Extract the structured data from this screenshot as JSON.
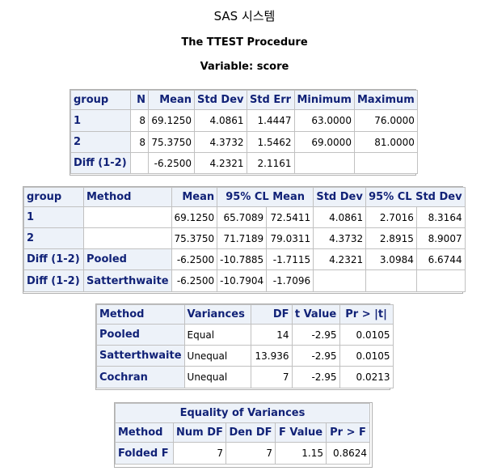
{
  "header": {
    "title": "SAS 시스템",
    "procedure": "The TTEST Procedure",
    "variable": "Variable: score"
  },
  "stats_table": {
    "headers": [
      "group",
      "N",
      "Mean",
      "Std Dev",
      "Std Err",
      "Minimum",
      "Maximum"
    ],
    "rows": [
      [
        "1",
        "8",
        "69.1250",
        "4.0861",
        "1.4447",
        "63.0000",
        "76.0000"
      ],
      [
        "2",
        "8",
        "75.3750",
        "4.3732",
        "1.5462",
        "69.0000",
        "81.0000"
      ],
      [
        "Diff (1-2)",
        "",
        "-6.2500",
        "4.2321",
        "2.1161",
        "",
        ""
      ]
    ]
  },
  "cl_table": {
    "headers": [
      "group",
      "Method",
      "Mean",
      "95% CL Mean",
      "Std Dev",
      "95% CL Std Dev"
    ],
    "rows": [
      [
        "1",
        "",
        "69.1250",
        "65.7089",
        "72.5411",
        "4.0861",
        "2.7016",
        "8.3164"
      ],
      [
        "2",
        "",
        "75.3750",
        "71.7189",
        "79.0311",
        "4.3732",
        "2.8915",
        "8.9007"
      ],
      [
        "Diff (1-2)",
        "Pooled",
        "-6.2500",
        "-10.7885",
        "-1.7115",
        "4.2321",
        "3.0984",
        "6.6744"
      ],
      [
        "Diff (1-2)",
        "Satterthwaite",
        "-6.2500",
        "-10.7904",
        "-1.7096",
        "",
        "",
        ""
      ]
    ]
  },
  "ttest_table": {
    "headers": [
      "Method",
      "Variances",
      "DF",
      "t Value",
      "Pr > |t|"
    ],
    "rows": [
      [
        "Pooled",
        "Equal",
        "14",
        "-2.95",
        "0.0105"
      ],
      [
        "Satterthwaite",
        "Unequal",
        "13.936",
        "-2.95",
        "0.0105"
      ],
      [
        "Cochran",
        "Unequal",
        "7",
        "-2.95",
        "0.0213"
      ]
    ]
  },
  "equality_table": {
    "caption": "Equality of Variances",
    "headers": [
      "Method",
      "Num DF",
      "Den DF",
      "F Value",
      "Pr > F"
    ],
    "rows": [
      [
        "Folded F",
        "7",
        "7",
        "1.15",
        "0.8624"
      ]
    ]
  }
}
